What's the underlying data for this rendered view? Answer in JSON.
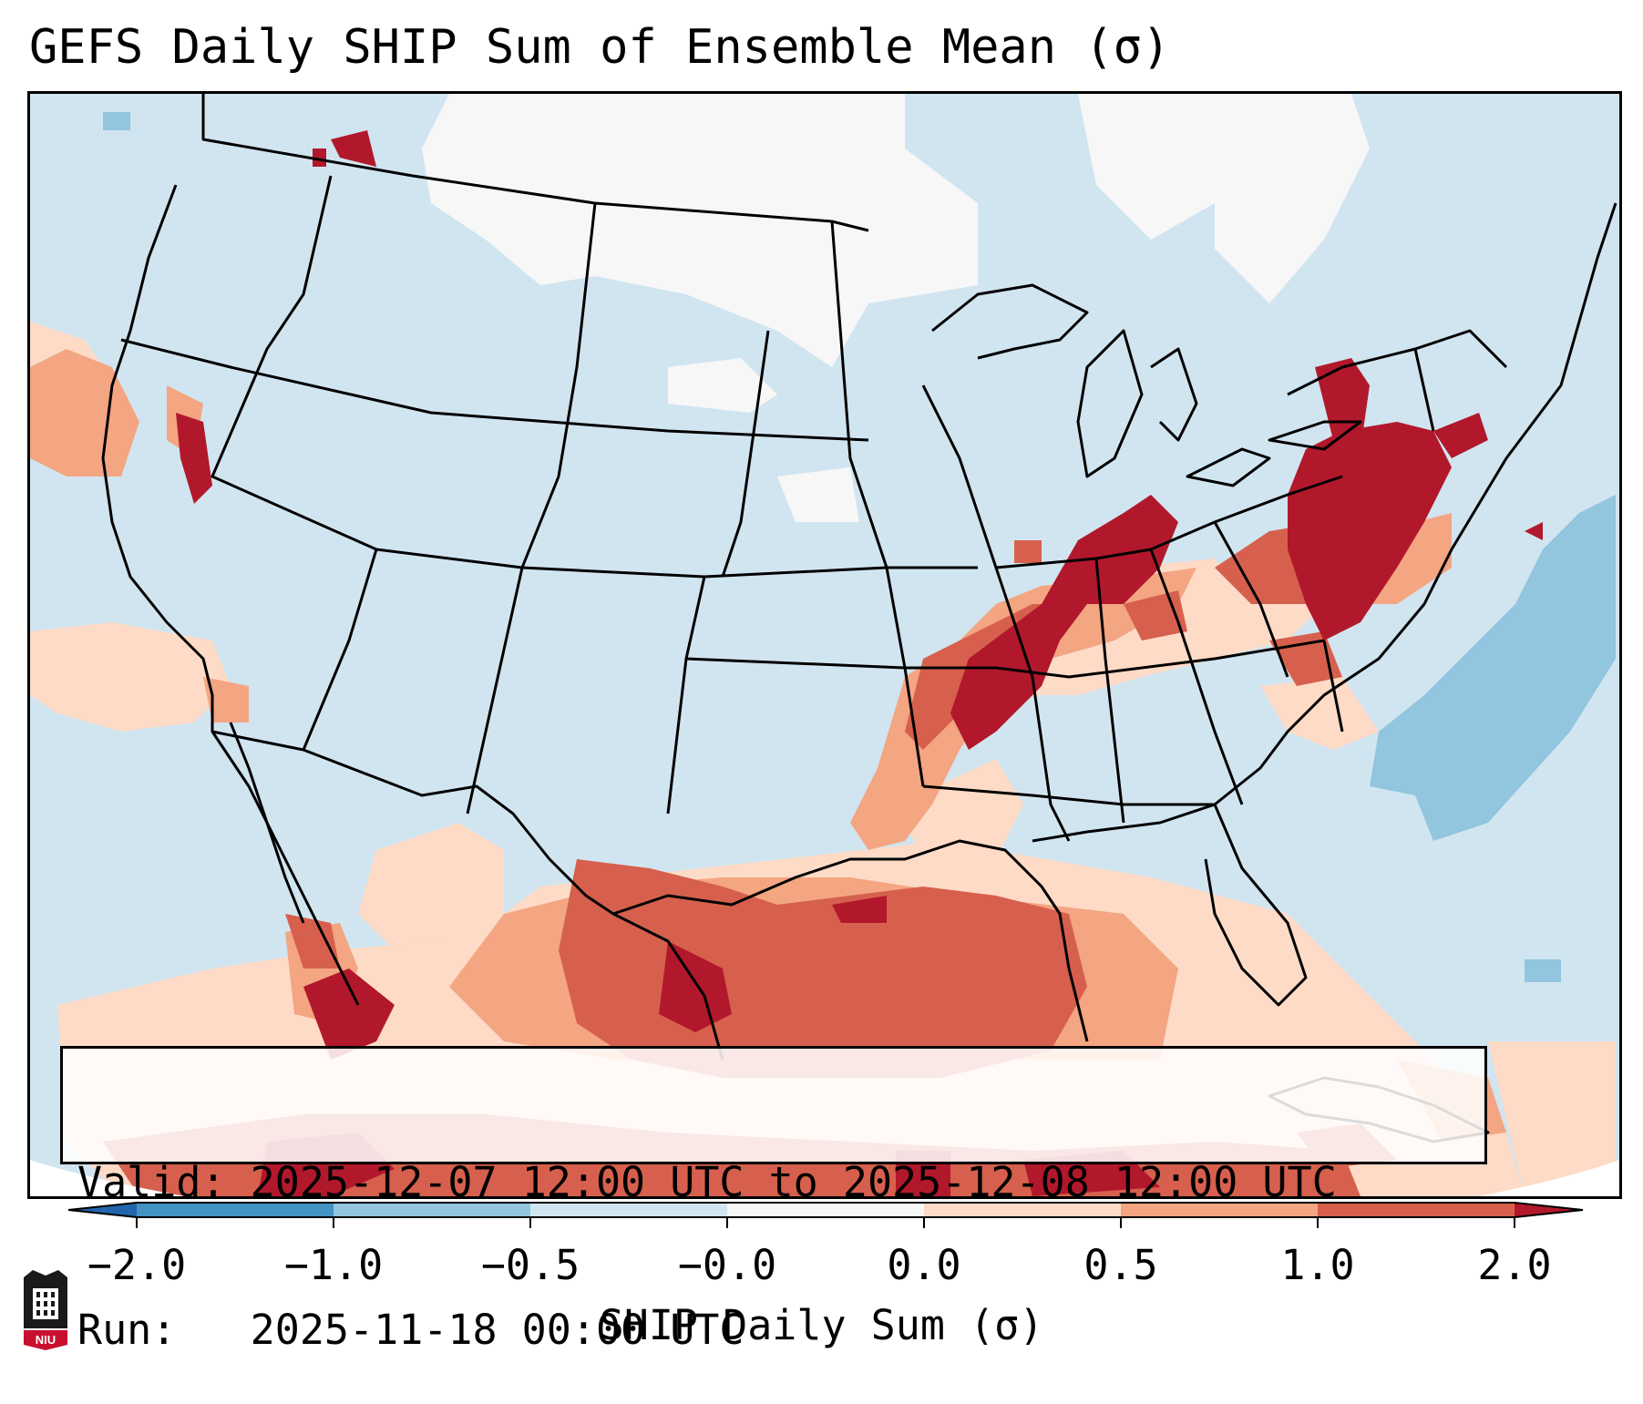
{
  "title": "GEFS Daily SHIP Sum of Ensemble Mean (σ)",
  "valid_line": "Valid: 2025-12-07 12:00 UTC to 2025-12-08 12:00 UTC",
  "run_line": "Run:   2025-11-18 00:00 UTC",
  "colorbar": {
    "label": "SHIP Daily Sum (σ)",
    "ticks": [
      "−2.0",
      "−1.0",
      "−0.5",
      "−0.0",
      "0.0",
      "0.5",
      "1.0",
      "2.0"
    ],
    "colors": [
      "#2166ac",
      "#4393c3",
      "#92c5de",
      "#d1e5f0",
      "#f7f7f7",
      "#fddbc7",
      "#f4a582",
      "#d6604d",
      "#b2182b"
    ]
  },
  "logo_text": "NIU"
}
